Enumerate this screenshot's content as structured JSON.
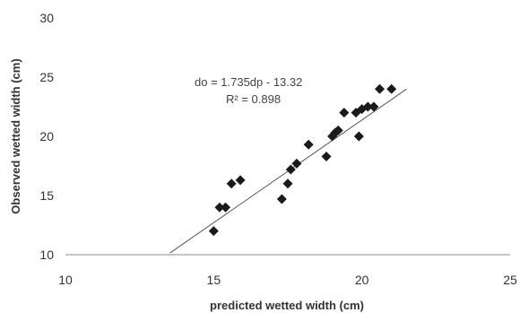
{
  "chart_data": {
    "type": "scatter",
    "title": "",
    "xlabel": "predicted  wetted width (cm)",
    "ylabel": "Observed wetted width (cm)",
    "xlim": [
      10,
      25
    ],
    "ylim": [
      10,
      30
    ],
    "xticks": [
      "10",
      "15",
      "20",
      "25"
    ],
    "yticks": [
      "10",
      "15",
      "20",
      "25",
      "30"
    ],
    "grid": false,
    "legend": "none",
    "series": [
      {
        "points": [
          {
            "x": 15.0,
            "y": 12.0
          },
          {
            "x": 15.2,
            "y": 14.0
          },
          {
            "x": 15.4,
            "y": 14.0
          },
          {
            "x": 15.6,
            "y": 16.0
          },
          {
            "x": 15.9,
            "y": 16.3
          },
          {
            "x": 17.3,
            "y": 14.7
          },
          {
            "x": 17.5,
            "y": 16.0
          },
          {
            "x": 17.6,
            "y": 17.2
          },
          {
            "x": 17.8,
            "y": 17.7
          },
          {
            "x": 18.2,
            "y": 19.3
          },
          {
            "x": 18.8,
            "y": 18.3
          },
          {
            "x": 19.0,
            "y": 20.0
          },
          {
            "x": 19.1,
            "y": 20.3
          },
          {
            "x": 19.2,
            "y": 20.5
          },
          {
            "x": 19.4,
            "y": 22.0
          },
          {
            "x": 19.8,
            "y": 22.0
          },
          {
            "x": 19.9,
            "y": 20.0
          },
          {
            "x": 20.0,
            "y": 22.3
          },
          {
            "x": 20.2,
            "y": 22.5
          },
          {
            "x": 20.4,
            "y": 22.5
          },
          {
            "x": 20.6,
            "y": 24.0
          },
          {
            "x": 21.0,
            "y": 24.0
          }
        ]
      }
    ],
    "trendline": {
      "slope": 1.735,
      "intercept": -13.32,
      "x_range": [
        13.52,
        21.5
      ]
    },
    "annotations": {
      "equation": "do = 1.735dp - 13.32",
      "r_squared": "R² = 0.898"
    },
    "colors": {
      "points": "#1a1a1a",
      "trendline": "#555555",
      "axis": "#8c8c8c"
    }
  }
}
